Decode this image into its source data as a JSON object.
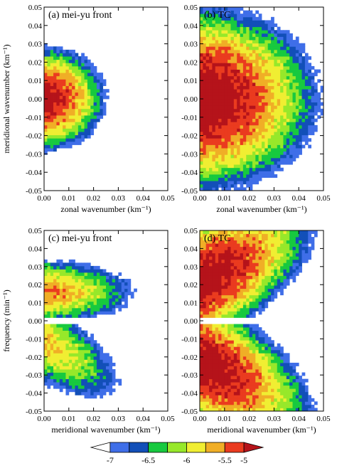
{
  "colorbar": {
    "levels": [
      -7,
      -6.75,
      -6.5,
      -6.25,
      -6,
      -5.75,
      -5.5,
      -5.25,
      -5
    ],
    "tick_labels": [
      "-7",
      "-6.5",
      "-6",
      "-5.5",
      "-5"
    ],
    "colors": [
      "#ffffff",
      "#3f6ee8",
      "#124fb8",
      "#17c93f",
      "#97e82a",
      "#f0ee32",
      "#f0ae26",
      "#ea3b1f",
      "#b5131a"
    ]
  },
  "chart_data": [
    {
      "type": "heatmap",
      "panel_label": "(a) mei-yu front",
      "xlabel": "zonal wavenumber (km⁻¹)",
      "ylabel": "meridional wavenumber (km⁻¹)",
      "xlim": [
        0,
        0.05
      ],
      "ylim": [
        -0.05,
        0.05
      ],
      "x_ticks": [
        "0.00",
        "0.01",
        "0.02",
        "0.03",
        "0.04",
        "0.05"
      ],
      "y_ticks": [
        "0.05",
        "0.04",
        "0.03",
        "0.02",
        "0.01",
        "0.00",
        "-0.01",
        "-0.02",
        "-0.03",
        "-0.04",
        "-0.05"
      ],
      "blobs": [
        {
          "cx": 0.0,
          "cy": 0.0,
          "rx": 0.028,
          "ry": 0.032,
          "peak": -5.1
        }
      ]
    },
    {
      "type": "heatmap",
      "panel_label": "(b) TC",
      "xlabel": "zonal wavenumber (km⁻¹)",
      "ylabel": "",
      "xlim": [
        0,
        0.05
      ],
      "ylim": [
        -0.05,
        0.05
      ],
      "x_ticks": [
        "0.00",
        "0.01",
        "0.02",
        "0.03",
        "0.04",
        "0.05"
      ],
      "y_ticks": [
        "0.05",
        "0.04",
        "0.03",
        "0.02",
        "0.01",
        "0.00",
        "-0.01",
        "-0.02",
        "-0.03",
        "-0.04",
        "-0.05"
      ],
      "blobs": [
        {
          "cx": 0.0,
          "cy": 0.0,
          "rx": 0.052,
          "ry": 0.055,
          "peak": -4.95
        }
      ]
    },
    {
      "type": "heatmap",
      "panel_label": "(c) mei-yu front",
      "xlabel": "meridional wavenumber (km⁻¹)",
      "ylabel": "frequency (min⁻¹)",
      "xlim": [
        0,
        0.05
      ],
      "ylim": [
        -0.05,
        0.05
      ],
      "x_ticks": [
        "0.00",
        "0.01",
        "0.02",
        "0.03",
        "0.04",
        "0.05"
      ],
      "y_ticks": [
        "0.05",
        "0.04",
        "0.03",
        "0.02",
        "0.01",
        "0.00",
        "-0.01",
        "-0.02",
        "-0.03",
        "-0.04",
        "-0.05"
      ],
      "gap": [
        -0.001,
        0.001
      ],
      "blobs": [
        {
          "cx": 0.0,
          "cy": 0.016,
          "rx": 0.045,
          "ry": 0.022,
          "peak": -5.55
        },
        {
          "cx": 0.0,
          "cy": -0.012,
          "rx": 0.04,
          "ry": 0.03,
          "peak": -5.75,
          "tilt": -0.7
        }
      ]
    },
    {
      "type": "heatmap",
      "panel_label": "(d) TC",
      "xlabel": "meridional wavenumber (km⁻¹)",
      "ylabel": "",
      "xlim": [
        0,
        0.05
      ],
      "ylim": [
        -0.05,
        0.05
      ],
      "x_ticks": [
        "0.00",
        "0.01",
        "0.02",
        "0.03",
        "0.04",
        "0.05"
      ],
      "y_ticks": [
        "0.05",
        "0.04",
        "0.03",
        "0.02",
        "0.01",
        "0.00",
        "-0.01",
        "-0.02",
        "-0.03",
        "-0.04",
        "-0.05"
      ],
      "gap": [
        -0.001,
        0.001
      ],
      "blobs": [
        {
          "cx": 0.0,
          "cy": 0.022,
          "rx": 0.05,
          "ry": 0.04,
          "peak": -5.0,
          "tilt": 0.6
        },
        {
          "cx": 0.0,
          "cy": -0.022,
          "rx": 0.05,
          "ry": 0.04,
          "peak": -5.0,
          "tilt": -0.6
        }
      ]
    }
  ]
}
